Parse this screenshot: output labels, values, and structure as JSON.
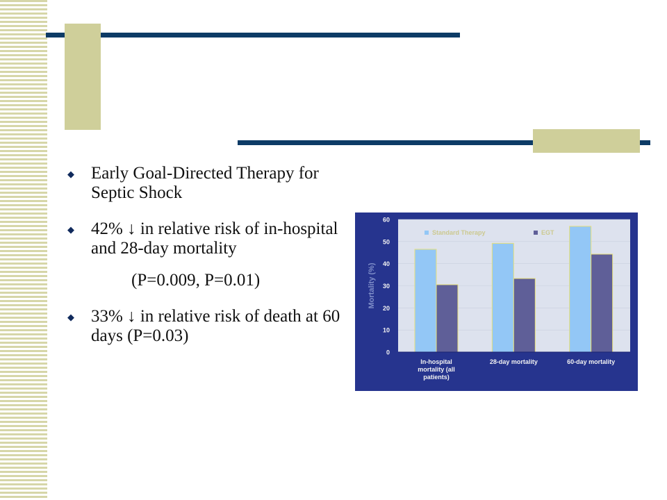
{
  "bullets": [
    {
      "text": "Early Goal-Directed Therapy for Septic Shock"
    },
    {
      "text": "42% ↓ in relative risk of in-hospital and 28-day mortality",
      "sub": "(P=0.009, P=0.01)"
    },
    {
      "text": "33% ↓ in relative risk of death at 60 days (P=0.03)"
    }
  ],
  "colors": {
    "accent_rule": "#0d3b66",
    "deco_block": "#cfcf9a",
    "chart_bg_outer": "#26348e",
    "chart_plot_bg": "#dde2ee",
    "series_standard": "#93c7f6",
    "series_egdt": "#5f5f98",
    "bar_outline": "#e8e07a"
  },
  "chart_data": {
    "type": "bar",
    "title": "",
    "xlabel": "",
    "ylabel": "Mortality (%)",
    "ylim": [
      0,
      60
    ],
    "yticks": [
      0,
      10,
      20,
      30,
      40,
      50,
      60
    ],
    "categories": [
      [
        "In-hospital",
        "mortality (all",
        "patients)"
      ],
      [
        "28-day mortality"
      ],
      [
        "60-day mortality"
      ]
    ],
    "series": [
      {
        "name": "Standard Therapy",
        "values": [
          46.5,
          49.2,
          56.9
        ]
      },
      {
        "name": "EGT",
        "values": [
          30.5,
          33.3,
          44.3
        ]
      }
    ],
    "legend": "top"
  }
}
